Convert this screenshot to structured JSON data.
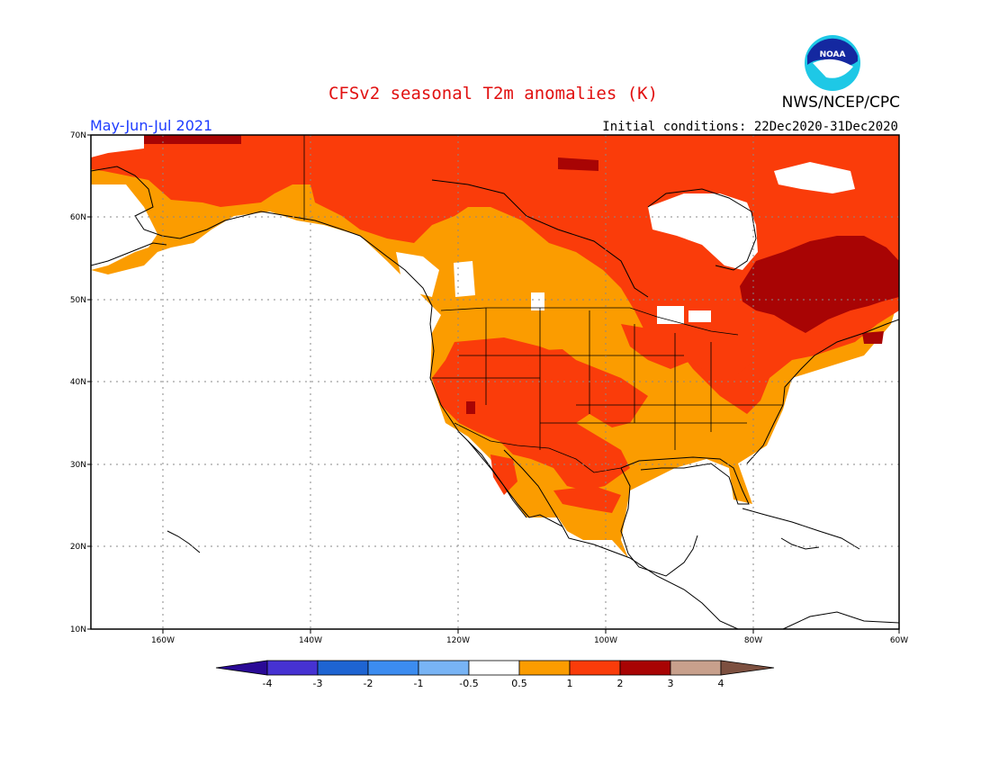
{
  "title": "CFSv2 seasonal T2m anomalies (K)",
  "season": "May-Jun-Jul 2021",
  "initial_conditions": "Initial conditions: 22Dec2020-31Dec2020",
  "agency": "NWS/NCEP/CPC",
  "logo_text": "NOAA",
  "colors": {
    "title": "#e11010",
    "season": "#1e3cff",
    "c05_1": "#fb9c00",
    "c1_2": "#fa3c0a",
    "c2_3": "#a80404",
    "ocean": "#ffffff",
    "coast": "#000000"
  },
  "lat_labels": [
    "70N",
    "60N",
    "50N",
    "40N",
    "30N",
    "20N",
    "10N"
  ],
  "lon_labels": [
    "160W",
    "140W",
    "120W",
    "100W",
    "80W",
    "60W"
  ],
  "colorbar": {
    "labels": [
      "-4",
      "-3",
      "-2",
      "-1",
      "-0.5",
      "0.5",
      "1",
      "2",
      "3",
      "4"
    ],
    "colors": [
      "#2a0a96",
      "#4632d2",
      "#1e64d2",
      "#3c8cf0",
      "#78b4f5",
      "#ffffff",
      "#fb9c00",
      "#fa3c0a",
      "#a80404",
      "#c8a08c",
      "#7d5040"
    ]
  }
}
